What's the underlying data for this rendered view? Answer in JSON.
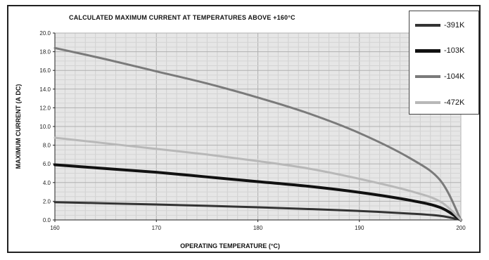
{
  "chart_data": {
    "type": "line",
    "title": "CALCULATED MAXIMUM CURRENT AT TEMPERATURES ABOVE +160°C",
    "xlabel": "OPERATING TEMPERATURE (°C)",
    "ylabel": "MAXIMUM CURRENT (A DC)",
    "xlim": [
      160,
      200
    ],
    "ylim": [
      0,
      20
    ],
    "x_ticks": [
      "160",
      "170",
      "180",
      "190",
      "200"
    ],
    "y_ticks": [
      "0.0",
      "2.0",
      "4.0",
      "6.0",
      "8.0",
      "10.0",
      "12.0",
      "14.0",
      "16.0",
      "18.0",
      "20.0"
    ],
    "grid": true,
    "legend_position": "top-right",
    "series": [
      {
        "name": "-391K",
        "color": "#333333",
        "width": 3,
        "x": [
          160,
          165,
          170,
          175,
          180,
          185,
          190,
          195,
          198,
          200
        ],
        "y": [
          1.9,
          1.78,
          1.65,
          1.51,
          1.35,
          1.17,
          0.96,
          0.68,
          0.43,
          0.0
        ]
      },
      {
        "name": "-103K",
        "color": "#111111",
        "width": 4,
        "x": [
          160,
          165,
          170,
          175,
          180,
          185,
          190,
          195,
          198,
          200
        ],
        "y": [
          5.9,
          5.5,
          5.1,
          4.6,
          4.1,
          3.6,
          2.95,
          2.1,
          1.32,
          0.0
        ]
      },
      {
        "name": "-104K",
        "color": "#7a7a7a",
        "width": 3,
        "x": [
          160,
          165,
          170,
          175,
          180,
          185,
          190,
          195,
          198,
          200
        ],
        "y": [
          18.4,
          17.2,
          15.9,
          14.6,
          13.1,
          11.4,
          9.3,
          6.6,
          4.2,
          0.0
        ]
      },
      {
        "name": "-472K",
        "color": "#b8b8b8",
        "width": 3,
        "x": [
          160,
          165,
          170,
          175,
          180,
          185,
          190,
          195,
          198,
          200
        ],
        "y": [
          8.8,
          8.2,
          7.6,
          7.0,
          6.3,
          5.5,
          4.4,
          3.1,
          1.95,
          0.0
        ]
      }
    ]
  }
}
